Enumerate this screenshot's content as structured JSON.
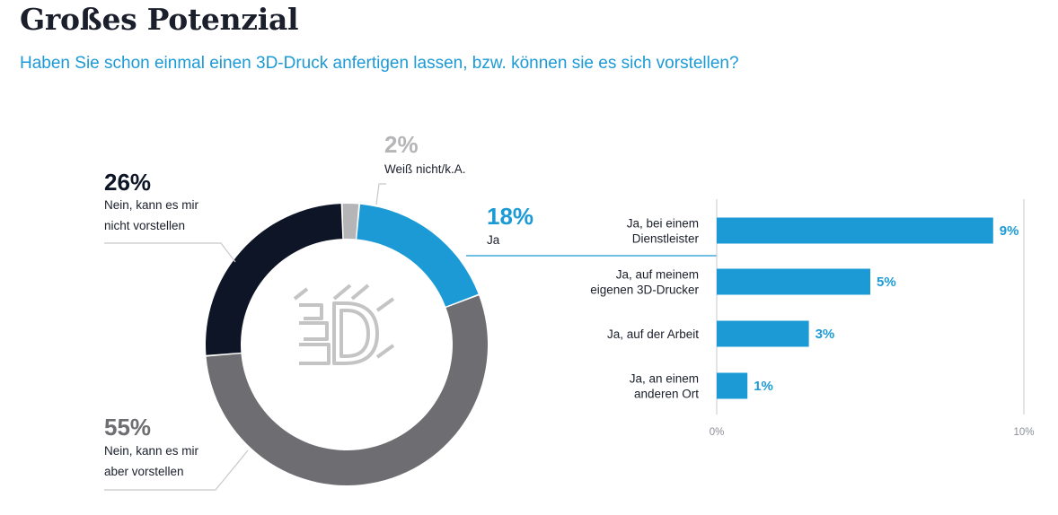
{
  "header": {
    "title": "Großes Potenzial",
    "subtitle": "Haben Sie schon einmal einen 3D-Druck anfertigen lassen, bzw. können sie es sich vorstellen?"
  },
  "logo_text": "3D",
  "colors": {
    "accent": "#1b9ad6",
    "dark": "#0d1526",
    "mid_grey": "#6e6e72",
    "light_grey": "#b5b5b7",
    "text": "#1a1f2b"
  },
  "chart_data": [
    {
      "type": "pie",
      "style": "donut",
      "slices": [
        {
          "value": 18,
          "pct_label": "18%",
          "label_lines": [
            "Ja"
          ],
          "color": "#1b9ad6"
        },
        {
          "value": 55,
          "pct_label": "55%",
          "label_lines": [
            "Nein, kann es mir",
            "aber vorstellen"
          ],
          "color": "#6e6e72"
        },
        {
          "value": 26,
          "pct_label": "26%",
          "label_lines": [
            "Nein, kann es mir",
            "nicht vorstellen"
          ],
          "color": "#0d1526"
        },
        {
          "value": 2,
          "pct_label": "2%",
          "label_lines": [
            "Weiß nicht/k.A."
          ],
          "color": "#b5b5b7"
        }
      ]
    },
    {
      "type": "bar",
      "orientation": "horizontal",
      "categories": [
        [
          "Ja, bei einem",
          "Dienstleister"
        ],
        [
          "Ja, auf meinem",
          "eigenen 3D-Drucker"
        ],
        [
          "Ja, auf der Arbeit"
        ],
        [
          "Ja, an einem",
          "anderen Ort"
        ]
      ],
      "values": [
        9,
        5,
        3,
        1
      ],
      "value_labels": [
        "9%",
        "5%",
        "3%",
        "1%"
      ],
      "xlim": [
        0,
        10
      ],
      "tick_labels": [
        "0%",
        "10%"
      ],
      "color": "#1b9ad6"
    }
  ]
}
